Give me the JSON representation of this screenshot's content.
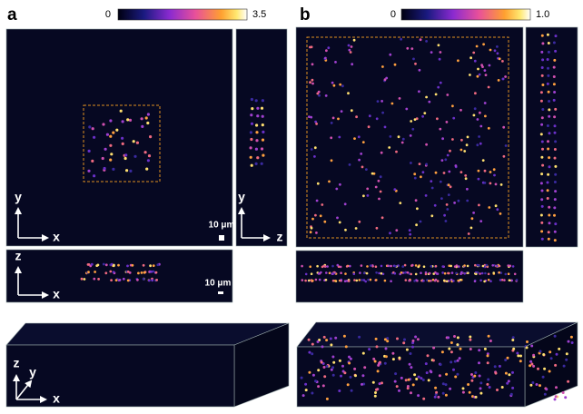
{
  "panels": [
    {
      "label": "a",
      "colorbar": {
        "min": "0",
        "max": "3.5"
      },
      "xy_view": {
        "vertical": "y",
        "horizontal": "x",
        "scale_bar": "10 μm"
      },
      "yz_view": {
        "vertical": "y",
        "horizontal": "z"
      },
      "xz_view": {
        "vertical": "z",
        "horizontal": "x",
        "scale_bar": "10 μm"
      },
      "volume_view": {
        "vertical": "z",
        "depth": "y",
        "horizontal": "x"
      }
    },
    {
      "label": "b",
      "colorbar": {
        "min": "0",
        "max": "1.0"
      }
    }
  ]
}
